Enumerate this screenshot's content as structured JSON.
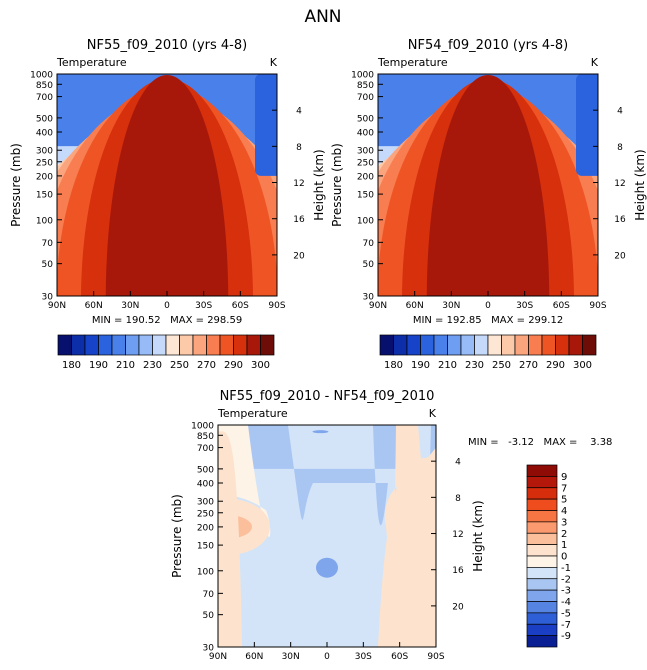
{
  "page": {
    "title": "ANN"
  },
  "chart_data": [
    {
      "type": "heatmap",
      "title": "NF55_f09_2010 (yrs 4-8)",
      "subtitle_left": "Temperature",
      "subtitle_right": "K",
      "xlabel": "",
      "ylabel": "Pressure (mb)",
      "ylabel_right": "Height (km)",
      "x_ticks": [
        "90N",
        "60N",
        "30N",
        "0",
        "30S",
        "60S",
        "90S"
      ],
      "y_ticks": [
        30,
        50,
        70,
        100,
        150,
        200,
        250,
        300,
        400,
        500,
        700,
        850,
        1000
      ],
      "height_ticks": [
        4,
        8,
        12,
        16,
        20
      ],
      "ylim": [
        1000,
        30
      ],
      "min_max_text": "MIN = 190.52   MAX = 298.59",
      "colorbar": {
        "labels": [
          "180",
          "190",
          "210",
          "230",
          "250",
          "270",
          "290",
          "300"
        ],
        "colors": [
          "#08106e",
          "#0c2ea8",
          "#1743c8",
          "#2b62dd",
          "#4a80ea",
          "#6e9ef2",
          "#96bbf6",
          "#c5d9fa",
          "#fde7d4",
          "#fcc9a9",
          "#fba57f",
          "#f87e52",
          "#ef5524",
          "#d6300d",
          "#a8180a",
          "#6e0d07"
        ]
      }
    },
    {
      "type": "heatmap",
      "title": "NF54_f09_2010 (yrs 4-8)",
      "subtitle_left": "Temperature",
      "subtitle_right": "K",
      "xlabel": "",
      "ylabel": "Pressure (mb)",
      "ylabel_right": "Height (km)",
      "x_ticks": [
        "90N",
        "60N",
        "30N",
        "0",
        "30S",
        "60S",
        "90S"
      ],
      "y_ticks": [
        30,
        50,
        70,
        100,
        150,
        200,
        250,
        300,
        400,
        500,
        700,
        850,
        1000
      ],
      "height_ticks": [
        4,
        8,
        12,
        16,
        20
      ],
      "ylim": [
        1000,
        30
      ],
      "min_max_text": "MIN = 192.85   MAX = 299.12",
      "colorbar": {
        "labels": [
          "180",
          "190",
          "210",
          "230",
          "250",
          "270",
          "290",
          "300"
        ],
        "colors": [
          "#08106e",
          "#0c2ea8",
          "#1743c8",
          "#2b62dd",
          "#4a80ea",
          "#6e9ef2",
          "#96bbf6",
          "#c5d9fa",
          "#fde7d4",
          "#fcc9a9",
          "#fba57f",
          "#f87e52",
          "#ef5524",
          "#d6300d",
          "#a8180a",
          "#6e0d07"
        ]
      }
    },
    {
      "type": "heatmap",
      "title": "NF55_f09_2010 - NF54_f09_2010",
      "subtitle_left": "Temperature",
      "subtitle_right": "K",
      "xlabel": "",
      "ylabel": "Pressure (mb)",
      "ylabel_right": "Height (km)",
      "x_ticks": [
        "90N",
        "60N",
        "30N",
        "0",
        "30S",
        "60S",
        "90S"
      ],
      "y_ticks": [
        30,
        50,
        70,
        100,
        150,
        200,
        250,
        300,
        400,
        500,
        700,
        850,
        1000
      ],
      "height_ticks": [
        4,
        8,
        12,
        16,
        20
      ],
      "ylim": [
        1000,
        30
      ],
      "min_max_text": "MIN =   -3.12   MAX =    3.38",
      "colorbar": {
        "labels": [
          "9",
          "7",
          "5",
          "4",
          "3",
          "2",
          "1",
          "0",
          "-1",
          "-2",
          "-3",
          "-4",
          "-5",
          "-7",
          "-9"
        ],
        "colors": [
          "#8e0b06",
          "#b3180a",
          "#d62d0d",
          "#ef4d1e",
          "#f77443",
          "#fb9a6e",
          "#fcbf9c",
          "#fde3cd",
          "#fdf3e7",
          "#d3e4f8",
          "#a9c6f3",
          "#7fa6ec",
          "#5584e2",
          "#2f5fd6",
          "#1a3ec4",
          "#0b1f94"
        ]
      }
    }
  ]
}
